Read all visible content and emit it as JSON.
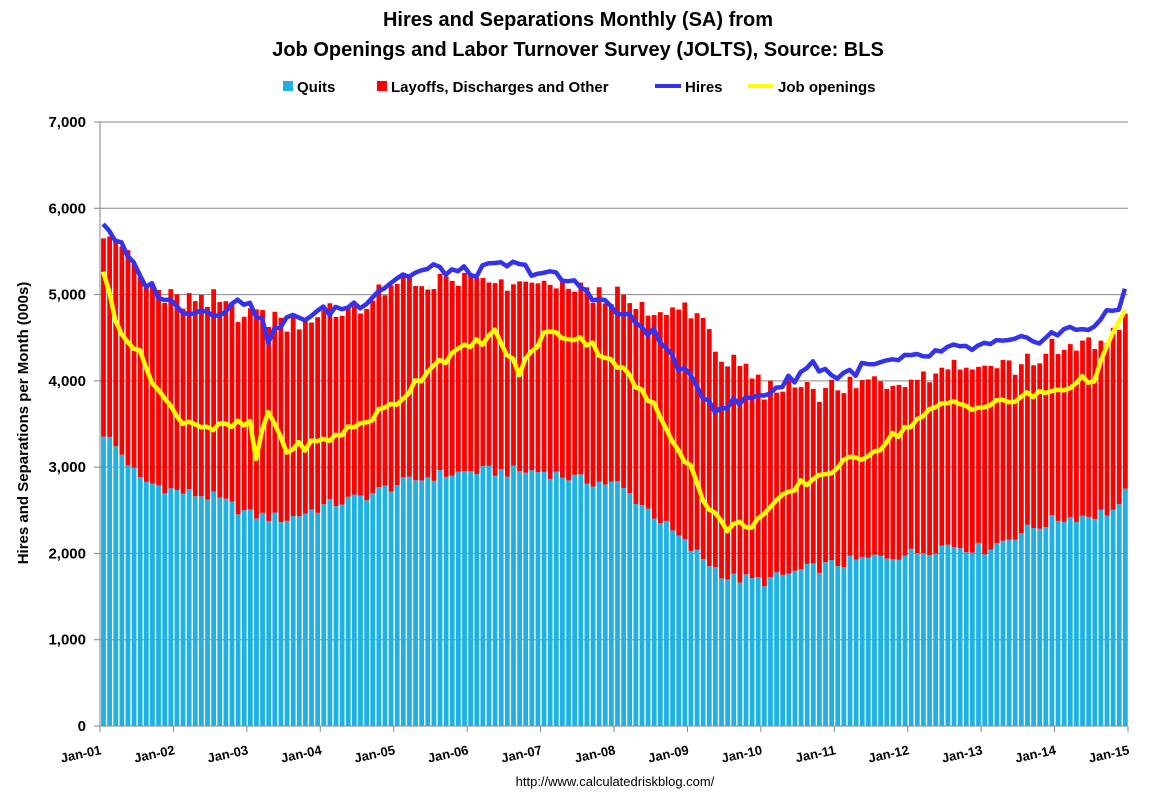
{
  "chart_data": {
    "type": "bar",
    "title": "Hires and Separations Monthly (SA) from",
    "subtitle": "Job Openings and Labor Turnover Survey (JOLTS), Source: BLS",
    "ylabel": "Hires and Separations per Month (000s)",
    "xlabel": "",
    "ylim": [
      0,
      7000
    ],
    "yticks": [
      "0",
      "1,000",
      "2,000",
      "3,000",
      "4,000",
      "5,000",
      "6,000",
      "7,000"
    ],
    "xticks": [
      "Jan-01",
      "Jan-02",
      "Jan-03",
      "Jan-04",
      "Jan-05",
      "Jan-06",
      "Jan-07",
      "Jan-08",
      "Jan-09",
      "Jan-10",
      "Jan-11",
      "Jan-12",
      "Jan-13",
      "Jan-14",
      "Jan-15"
    ],
    "legend_position": "top",
    "grid": true,
    "stacked": true,
    "series": [
      {
        "name": "Quits",
        "kind": "bar",
        "color": "#1fb0e6",
        "knots": [
          [
            0,
            3400
          ],
          [
            3,
            3150
          ],
          [
            6,
            2850
          ],
          [
            12,
            2720
          ],
          [
            18,
            2650
          ],
          [
            24,
            2450
          ],
          [
            30,
            2400
          ],
          [
            36,
            2550
          ],
          [
            42,
            2650
          ],
          [
            48,
            2800
          ],
          [
            54,
            2900
          ],
          [
            60,
            2950
          ],
          [
            66,
            2950
          ],
          [
            72,
            2950
          ],
          [
            78,
            2850
          ],
          [
            84,
            2800
          ],
          [
            90,
            2450
          ],
          [
            96,
            2050
          ],
          [
            102,
            1720
          ],
          [
            108,
            1680
          ],
          [
            114,
            1800
          ],
          [
            120,
            1880
          ],
          [
            126,
            1950
          ],
          [
            132,
            2000
          ],
          [
            138,
            2100
          ],
          [
            144,
            2050
          ],
          [
            150,
            2250
          ],
          [
            156,
            2400
          ],
          [
            162,
            2450
          ],
          [
            168,
            2550
          ],
          [
            164,
            2750
          ]
        ]
      },
      {
        "name": "Layoffs, Discharges and Other",
        "kind": "bar",
        "color": "#ff0000",
        "knots": [
          [
            0,
            2400
          ],
          [
            3,
            2450
          ],
          [
            6,
            2300
          ],
          [
            12,
            2200
          ],
          [
            18,
            2250
          ],
          [
            24,
            2350
          ],
          [
            30,
            2300
          ],
          [
            36,
            2200
          ],
          [
            42,
            2200
          ],
          [
            48,
            2300
          ],
          [
            54,
            2250
          ],
          [
            60,
            2200
          ],
          [
            66,
            2150
          ],
          [
            72,
            2150
          ],
          [
            78,
            2200
          ],
          [
            84,
            2150
          ],
          [
            90,
            2300
          ],
          [
            96,
            2800
          ],
          [
            102,
            2500
          ],
          [
            108,
            2200
          ],
          [
            114,
            2150
          ],
          [
            120,
            2000
          ],
          [
            126,
            2050
          ],
          [
            132,
            2050
          ],
          [
            138,
            2100
          ],
          [
            144,
            2150
          ],
          [
            150,
            1950
          ],
          [
            156,
            1950
          ],
          [
            162,
            2000
          ],
          [
            168,
            2050
          ]
        ]
      },
      {
        "name": "Hires",
        "kind": "line",
        "color": "#3333ee",
        "knots": [
          [
            0,
            5850
          ],
          [
            3,
            5550
          ],
          [
            6,
            5200
          ],
          [
            12,
            4850
          ],
          [
            18,
            4800
          ],
          [
            24,
            4950
          ],
          [
            27,
            4500
          ],
          [
            30,
            4700
          ],
          [
            36,
            4800
          ],
          [
            42,
            4900
          ],
          [
            48,
            5200
          ],
          [
            54,
            5300
          ],
          [
            60,
            5250
          ],
          [
            66,
            5350
          ],
          [
            72,
            5250
          ],
          [
            78,
            5100
          ],
          [
            84,
            4800
          ],
          [
            90,
            4550
          ],
          [
            96,
            4000
          ],
          [
            100,
            3700
          ],
          [
            104,
            3750
          ],
          [
            108,
            3850
          ],
          [
            112,
            4000
          ],
          [
            116,
            4200
          ],
          [
            120,
            4050
          ],
          [
            124,
            4150
          ],
          [
            128,
            4200
          ],
          [
            132,
            4250
          ],
          [
            138,
            4350
          ],
          [
            144,
            4400
          ],
          [
            150,
            4450
          ],
          [
            156,
            4550
          ],
          [
            162,
            4650
          ],
          [
            166,
            4850
          ],
          [
            167,
            5050
          ],
          [
            168,
            4800
          ]
        ]
      },
      {
        "name": "Job openings",
        "kind": "line",
        "color": "#ffff00",
        "knots": [
          [
            0,
            5300
          ],
          [
            2,
            4700
          ],
          [
            6,
            4300
          ],
          [
            9,
            3900
          ],
          [
            12,
            3580
          ],
          [
            18,
            3450
          ],
          [
            24,
            3500
          ],
          [
            25,
            3100
          ],
          [
            27,
            3650
          ],
          [
            30,
            3200
          ],
          [
            36,
            3300
          ],
          [
            42,
            3500
          ],
          [
            48,
            3750
          ],
          [
            54,
            4200
          ],
          [
            60,
            4400
          ],
          [
            64,
            4550
          ],
          [
            68,
            4100
          ],
          [
            72,
            4550
          ],
          [
            78,
            4500
          ],
          [
            84,
            4200
          ],
          [
            90,
            3700
          ],
          [
            96,
            3000
          ],
          [
            99,
            2500
          ],
          [
            102,
            2300
          ],
          [
            106,
            2350
          ],
          [
            108,
            2450
          ],
          [
            114,
            2800
          ],
          [
            120,
            3000
          ],
          [
            126,
            3200
          ],
          [
            132,
            3500
          ],
          [
            138,
            3750
          ],
          [
            144,
            3700
          ],
          [
            150,
            3800
          ],
          [
            156,
            3900
          ],
          [
            162,
            4050
          ],
          [
            166,
            4650
          ],
          [
            167,
            4850
          ],
          [
            168,
            4750
          ]
        ]
      }
    ],
    "months": 168,
    "start": "Jan-01"
  },
  "footer": {
    "source_url": "http://www.calculatedriskblog.com/"
  },
  "colors": {
    "quits": "#1fb0e6",
    "layoffs": "#ff0000",
    "hires": "#3333ee",
    "openings": "#ffff00",
    "grid": "#868686"
  }
}
